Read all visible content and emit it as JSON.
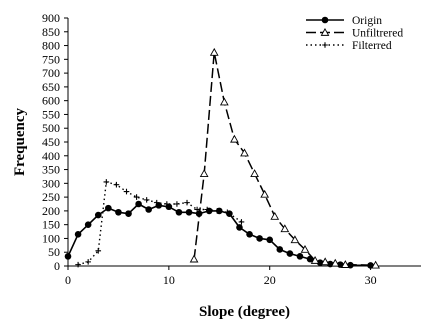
{
  "chart_data": {
    "type": "line",
    "xlabel": "Slope (degree)",
    "ylabel": "Frequency",
    "xlim": [
      0,
      35
    ],
    "ylim": [
      0,
      900
    ],
    "xticks": [
      0,
      10,
      20,
      30
    ],
    "yticks": [
      0,
      50,
      100,
      150,
      200,
      250,
      300,
      350,
      400,
      450,
      500,
      550,
      600,
      650,
      700,
      750,
      800,
      850,
      900
    ],
    "grid": false,
    "legend_position": "top-right",
    "series": [
      {
        "name": "Origin",
        "style": "solid",
        "marker": "filled-circle",
        "color": "#000000",
        "points": [
          [
            0,
            35
          ],
          [
            1,
            115
          ],
          [
            2,
            150
          ],
          [
            3,
            185
          ],
          [
            4,
            210
          ],
          [
            5,
            195
          ],
          [
            6,
            190
          ],
          [
            7,
            225
          ],
          [
            8,
            205
          ],
          [
            9,
            220
          ],
          [
            10,
            215
          ],
          [
            11,
            195
          ],
          [
            12,
            195
          ],
          [
            13,
            190
          ],
          [
            14,
            200
          ],
          [
            15,
            200
          ],
          [
            16,
            190
          ],
          [
            17,
            140
          ],
          [
            18,
            115
          ],
          [
            19,
            100
          ],
          [
            20,
            95
          ],
          [
            21,
            60
          ],
          [
            22,
            45
          ],
          [
            23,
            35
          ],
          [
            24,
            25
          ],
          [
            25,
            12
          ],
          [
            26,
            7
          ],
          [
            27,
            5
          ],
          [
            28,
            3
          ],
          [
            30,
            2
          ]
        ]
      },
      {
        "name": "Unfiltrered",
        "style": "long-dash",
        "marker": "open-triangle",
        "color": "#000000",
        "points": [
          [
            12.5,
            25
          ],
          [
            13.5,
            335
          ],
          [
            14.5,
            775
          ],
          [
            15.5,
            595
          ],
          [
            16.5,
            460
          ],
          [
            17.5,
            410
          ],
          [
            18.5,
            335
          ],
          [
            19.5,
            260
          ],
          [
            20.5,
            180
          ],
          [
            21.5,
            135
          ],
          [
            22.5,
            95
          ],
          [
            23.5,
            60
          ],
          [
            24.5,
            20
          ],
          [
            25.5,
            15
          ],
          [
            26.5,
            10
          ],
          [
            27.5,
            5
          ],
          [
            30.5,
            3
          ]
        ]
      },
      {
        "name": "Filterred",
        "style": "dotted",
        "marker": "plus",
        "color": "#000000",
        "points": [
          [
            1,
            5
          ],
          [
            2,
            15
          ],
          [
            3,
            55
          ],
          [
            3.8,
            305
          ],
          [
            4.8,
            295
          ],
          [
            5.8,
            270
          ],
          [
            6.8,
            250
          ],
          [
            7.8,
            240
          ],
          [
            8.8,
            230
          ],
          [
            9.8,
            225
          ],
          [
            10.8,
            225
          ],
          [
            11.8,
            230
          ],
          [
            12.8,
            205
          ],
          [
            13.8,
            205
          ],
          [
            14.8,
            200
          ],
          [
            15.8,
            195
          ],
          [
            17.2,
            160
          ]
        ]
      }
    ]
  }
}
